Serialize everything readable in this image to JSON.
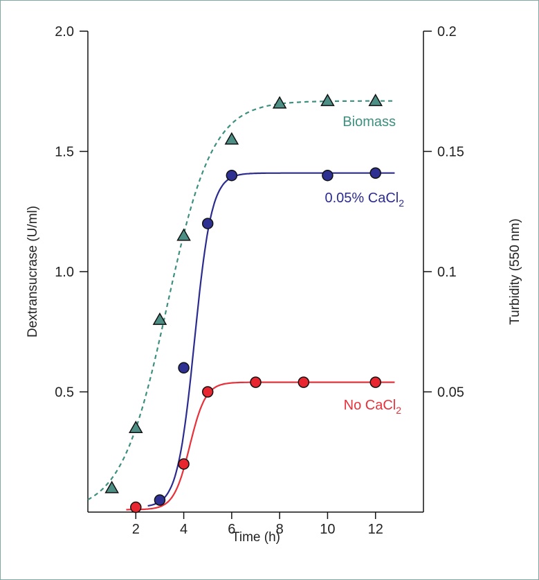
{
  "chart_data": {
    "type": "line",
    "x_axis": {
      "label": "Time (h)",
      "ticks": [
        2,
        4,
        6,
        8,
        10,
        12
      ],
      "range": [
        0,
        14
      ]
    },
    "y_axis_left": {
      "label": "Dextransucrase (U/ml)",
      "ticks": [
        "0.5",
        "1.0",
        "1.5",
        "2.0"
      ],
      "range": [
        0,
        2.0
      ]
    },
    "y_axis_right": {
      "label": "Turbidity (550 nm)",
      "ticks": [
        "0.05",
        "0.1",
        "0.15",
        "0.2"
      ],
      "range": [
        0,
        0.2
      ]
    },
    "series": [
      {
        "name": "Biomass",
        "axis": "right",
        "marker": "triangle",
        "line_style": "dashed",
        "color": "#3d8f7f",
        "marker_fill": "#4d8f85",
        "x": [
          1,
          2,
          3,
          4,
          6,
          8,
          10,
          12
        ],
        "y": [
          0.01,
          0.035,
          0.08,
          0.115,
          0.155,
          0.17,
          0.171,
          0.171
        ]
      },
      {
        "name": "0.05% CaCl2",
        "axis": "left",
        "marker": "circle",
        "line_style": "solid",
        "color": "#2b2b8f",
        "marker_fill": "#2e3192",
        "x": [
          3,
          4,
          5,
          6,
          10,
          12
        ],
        "y": [
          0.05,
          0.6,
          1.2,
          1.4,
          1.4,
          1.41
        ]
      },
      {
        "name": "No CaCl2",
        "axis": "left",
        "marker": "circle",
        "line_style": "solid",
        "color": "#e8303a",
        "marker_fill": "#e8262f",
        "x": [
          2,
          4,
          5,
          7,
          9,
          12
        ],
        "y": [
          0.02,
          0.2,
          0.5,
          0.54,
          0.54,
          0.54
        ]
      }
    ],
    "grid": false
  }
}
